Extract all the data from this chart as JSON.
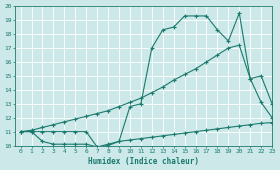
{
  "bg_color": "#cce8e8",
  "line_color": "#1a7a6e",
  "grid_color": "#ffffff",
  "xlabel": "Humidex (Indice chaleur)",
  "ylim": [
    10,
    20
  ],
  "xlim": [
    -0.5,
    23
  ],
  "yticks": [
    10,
    11,
    12,
    13,
    14,
    15,
    16,
    17,
    18,
    19,
    20
  ],
  "xticks": [
    0,
    1,
    2,
    3,
    4,
    5,
    6,
    7,
    8,
    9,
    10,
    11,
    12,
    13,
    14,
    15,
    16,
    17,
    18,
    19,
    20,
    21,
    22,
    23
  ],
  "line1_x": [
    0,
    1,
    2,
    3,
    4,
    5,
    6,
    7,
    8,
    9,
    10,
    11,
    12,
    13,
    14,
    15,
    16,
    17,
    18,
    19,
    20,
    21,
    22,
    23
  ],
  "line1_y": [
    11.0,
    11.0,
    10.3,
    10.1,
    10.1,
    10.1,
    10.1,
    9.9,
    10.1,
    10.3,
    10.4,
    10.5,
    10.6,
    10.7,
    10.8,
    10.9,
    11.0,
    11.1,
    11.2,
    11.3,
    11.4,
    11.5,
    11.6,
    11.65
  ],
  "line2_x": [
    0,
    1,
    2,
    3,
    4,
    5,
    6,
    7,
    8,
    9,
    10,
    11,
    12,
    13,
    14,
    15,
    16,
    17,
    18,
    19,
    20,
    21,
    22,
    23
  ],
  "line2_y": [
    11.0,
    11.1,
    11.3,
    11.5,
    11.7,
    11.9,
    12.1,
    12.3,
    12.5,
    12.8,
    13.1,
    13.4,
    13.8,
    14.2,
    14.7,
    15.1,
    15.5,
    16.0,
    16.5,
    17.0,
    17.2,
    14.8,
    13.1,
    12.0
  ],
  "line3_x": [
    0,
    1,
    2,
    3,
    4,
    5,
    6,
    7,
    8,
    9,
    10,
    11,
    12,
    13,
    14,
    15,
    16,
    17,
    18,
    19,
    20,
    21,
    22,
    23
  ],
  "line3_y": [
    11.0,
    11.0,
    11.0,
    11.0,
    11.0,
    11.0,
    11.0,
    9.9,
    10.0,
    10.3,
    12.8,
    13.0,
    17.0,
    18.3,
    18.5,
    19.3,
    19.3,
    19.3,
    18.3,
    17.5,
    19.5,
    14.8,
    15.0,
    13.0
  ]
}
